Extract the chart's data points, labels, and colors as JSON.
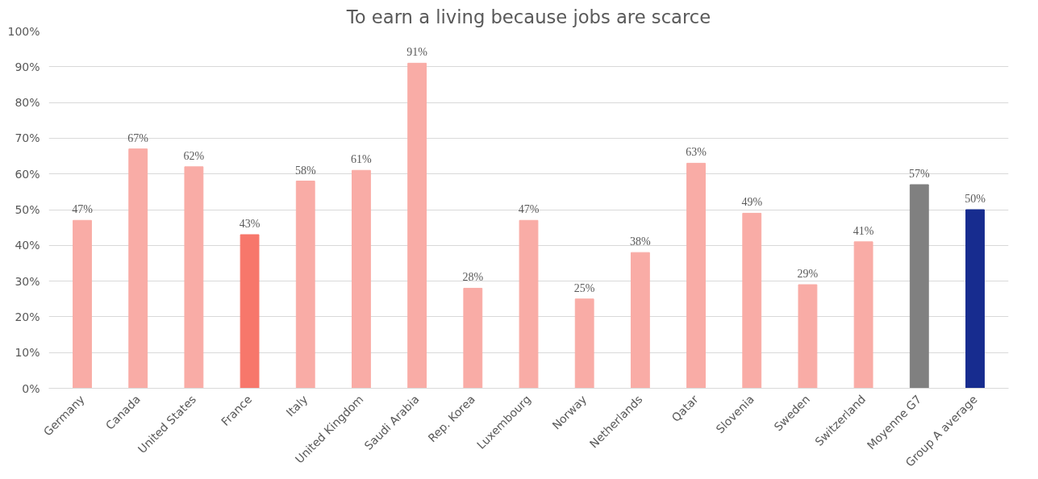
{
  "chart_data": {
    "type": "bar",
    "title": "To earn a living because jobs are scarce",
    "categories": [
      "Germany",
      "Canada",
      "United States",
      "France",
      "Italy",
      "United Kingdom",
      "Saudi Arabia",
      "Rep. Korea",
      "Luxembourg",
      "Norway",
      "Netherlands",
      "Qatar",
      "Slovenia",
      "Sweden",
      "Switzerland",
      "Moyenne G7",
      "Group A average"
    ],
    "values": [
      47,
      67,
      62,
      43,
      58,
      61,
      91,
      28,
      47,
      25,
      38,
      63,
      49,
      29,
      41,
      57,
      50
    ],
    "colors": [
      "#f9aca6",
      "#f9aca6",
      "#f9aca6",
      "#f7776b",
      "#f9aca6",
      "#f9aca6",
      "#f9aca6",
      "#f9aca6",
      "#f9aca6",
      "#f9aca6",
      "#f9aca6",
      "#f9aca6",
      "#f9aca6",
      "#f9aca6",
      "#f9aca6",
      "#808080",
      "#172c8f"
    ],
    "value_labels": [
      "47%",
      "67%",
      "62%",
      "43%",
      "58%",
      "61%",
      "91%",
      "28%",
      "47%",
      "25%",
      "38%",
      "63%",
      "49%",
      "29%",
      "41%",
      "57%",
      "50%"
    ],
    "ylim": [
      0,
      100
    ],
    "yticks": [
      {
        "value": 0,
        "label": "0%"
      },
      {
        "value": 10,
        "label": "10%"
      },
      {
        "value": 20,
        "label": "20%"
      },
      {
        "value": 30,
        "label": "30%"
      },
      {
        "value": 40,
        "label": "40%"
      },
      {
        "value": 50,
        "label": "50%"
      },
      {
        "value": 60,
        "label": "60%"
      },
      {
        "value": 70,
        "label": "70%"
      },
      {
        "value": 80,
        "label": "80%"
      },
      {
        "value": 90,
        "label": "90%"
      },
      {
        "value": 100,
        "label": "100%"
      }
    ],
    "grid": "y"
  }
}
